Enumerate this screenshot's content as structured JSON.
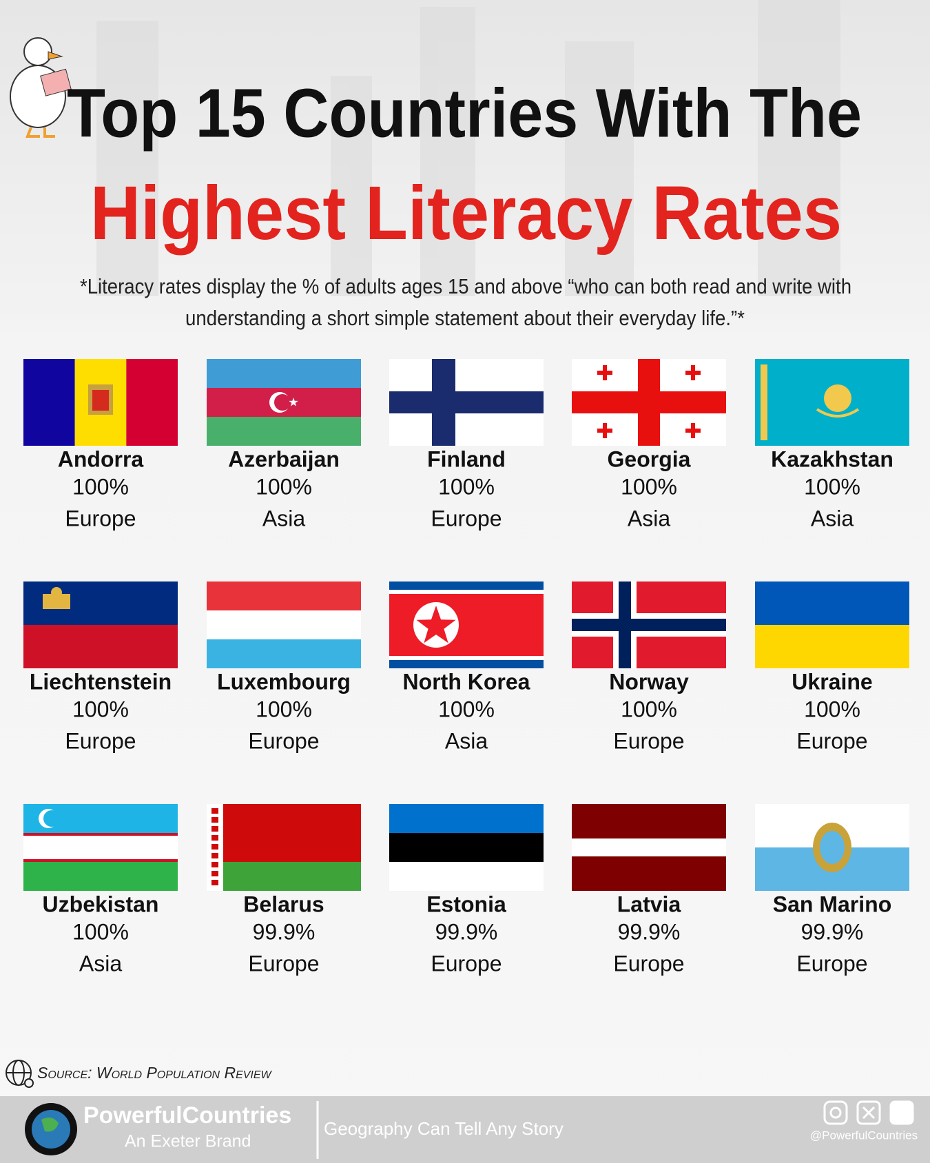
{
  "header": {
    "title_line1": "Top 15 Countries With The",
    "title_line2": "Highest Literacy Rates",
    "subtitle_line1": "*Literacy rates display the % of adults ages 15 and above “who can both read and write with",
    "subtitle_line2": "understanding a short simple statement about their everyday life.”*"
  },
  "countries": [
    {
      "name": "Andorra",
      "rate": "100%",
      "region": "Europe"
    },
    {
      "name": "Azerbaijan",
      "rate": "100%",
      "region": "Asia"
    },
    {
      "name": "Finland",
      "rate": "100%",
      "region": "Europe"
    },
    {
      "name": "Georgia",
      "rate": "100%",
      "region": "Asia"
    },
    {
      "name": "Kazakhstan",
      "rate": "100%",
      "region": "Asia"
    },
    {
      "name": "Liechtenstein",
      "rate": "100%",
      "region": "Europe"
    },
    {
      "name": "Luxembourg",
      "rate": "100%",
      "region": "Europe"
    },
    {
      "name": "North Korea",
      "rate": "100%",
      "region": "Asia"
    },
    {
      "name": "Norway",
      "rate": "100%",
      "region": "Europe"
    },
    {
      "name": "Ukraine",
      "rate": "100%",
      "region": "Europe"
    },
    {
      "name": "Uzbekistan",
      "rate": "100%",
      "region": "Asia"
    },
    {
      "name": "Belarus",
      "rate": "99.9%",
      "region": "Europe"
    },
    {
      "name": "Estonia",
      "rate": "99.9%",
      "region": "Europe"
    },
    {
      "name": "Latvia",
      "rate": "99.9%",
      "region": "Europe"
    },
    {
      "name": "San Marino",
      "rate": "99.9%",
      "region": "Europe"
    }
  ],
  "source": "Source: World Population Review",
  "footer": {
    "brand": "PowerfulCountries",
    "brand_sub": "An Exeter Brand",
    "tagline": "Geography Can Tell Any Story",
    "handle": "@PowerfulCountries"
  }
}
